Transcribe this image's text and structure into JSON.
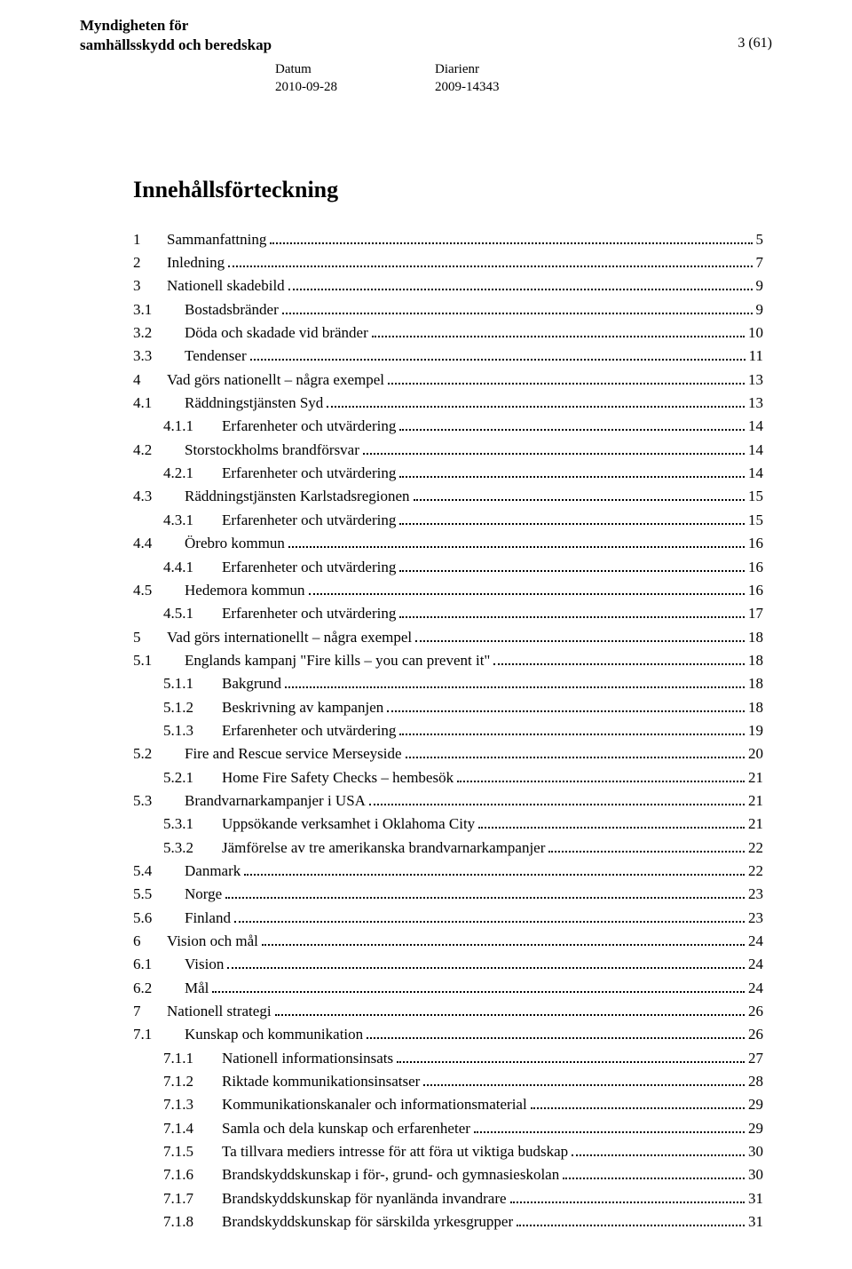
{
  "header": {
    "org_line1": "Myndigheten för",
    "org_line2": "samhällsskydd och beredskap",
    "page_indicator": "3 (61)",
    "meta": {
      "datum_label": "Datum",
      "datum_value": "2010-09-28",
      "diarienr_label": "Diarienr",
      "diarienr_value": "2009-14343"
    }
  },
  "title": "Innehållsförteckning",
  "toc": [
    {
      "level": 0,
      "num": "1",
      "text": "Sammanfattning",
      "page": "5"
    },
    {
      "level": 0,
      "num": "2",
      "text": "Inledning",
      "page": "7"
    },
    {
      "level": 0,
      "num": "3",
      "text": "Nationell skadebild",
      "page": "9"
    },
    {
      "level": 1,
      "num": "3.1",
      "text": "Bostadsbränder",
      "page": "9"
    },
    {
      "level": 1,
      "num": "3.2",
      "text": "Döda och skadade vid bränder",
      "page": "10"
    },
    {
      "level": 1,
      "num": "3.3",
      "text": "Tendenser",
      "page": "11"
    },
    {
      "level": 0,
      "num": "4",
      "text": "Vad görs nationellt – några exempel",
      "page": "13"
    },
    {
      "level": 1,
      "num": "4.1",
      "text": "Räddningstjänsten Syd",
      "page": "13"
    },
    {
      "level": 2,
      "num": "4.1.1",
      "text": "Erfarenheter och utvärdering",
      "page": "14"
    },
    {
      "level": 1,
      "num": "4.2",
      "text": "Storstockholms brandförsvar",
      "page": "14"
    },
    {
      "level": 2,
      "num": "4.2.1",
      "text": "Erfarenheter och utvärdering",
      "page": "14"
    },
    {
      "level": 1,
      "num": "4.3",
      "text": "Räddningstjänsten Karlstadsregionen",
      "page": "15"
    },
    {
      "level": 2,
      "num": "4.3.1",
      "text": "Erfarenheter och utvärdering",
      "page": "15"
    },
    {
      "level": 1,
      "num": "4.4",
      "text": "Örebro kommun",
      "page": "16"
    },
    {
      "level": 2,
      "num": "4.4.1",
      "text": "Erfarenheter och utvärdering",
      "page": "16"
    },
    {
      "level": 1,
      "num": "4.5",
      "text": "Hedemora kommun",
      "page": "16"
    },
    {
      "level": 2,
      "num": "4.5.1",
      "text": "Erfarenheter och utvärdering",
      "page": "17"
    },
    {
      "level": 0,
      "num": "5",
      "text": "Vad görs internationellt – några exempel",
      "page": "18"
    },
    {
      "level": 1,
      "num": "5.1",
      "text": "Englands kampanj \"Fire kills – you can prevent it\"",
      "page": "18"
    },
    {
      "level": 2,
      "num": "5.1.1",
      "text": "Bakgrund",
      "page": "18"
    },
    {
      "level": 2,
      "num": "5.1.2",
      "text": "Beskrivning av kampanjen",
      "page": "18"
    },
    {
      "level": 2,
      "num": "5.1.3",
      "text": "Erfarenheter och utvärdering",
      "page": "19"
    },
    {
      "level": 1,
      "num": "5.2",
      "text": "Fire and Rescue service Merseyside",
      "page": "20"
    },
    {
      "level": 2,
      "num": "5.2.1",
      "text": "Home Fire Safety Checks – hembesök",
      "page": "21"
    },
    {
      "level": 1,
      "num": "5.3",
      "text": "Brandvarnarkampanjer i USA",
      "page": "21"
    },
    {
      "level": 2,
      "num": "5.3.1",
      "text": "Uppsökande verksamhet i Oklahoma City",
      "page": "21"
    },
    {
      "level": 2,
      "num": "5.3.2",
      "text": "Jämförelse av tre amerikanska brandvarnarkampanjer",
      "page": "22"
    },
    {
      "level": 1,
      "num": "5.4",
      "text": "Danmark",
      "page": "22"
    },
    {
      "level": 1,
      "num": "5.5",
      "text": "Norge",
      "page": "23"
    },
    {
      "level": 1,
      "num": "5.6",
      "text": "Finland",
      "page": "23"
    },
    {
      "level": 0,
      "num": "6",
      "text": "Vision och mål",
      "page": "24"
    },
    {
      "level": 1,
      "num": "6.1",
      "text": "Vision",
      "page": "24"
    },
    {
      "level": 1,
      "num": "6.2",
      "text": "Mål",
      "page": "24"
    },
    {
      "level": 0,
      "num": "7",
      "text": "Nationell strategi",
      "page": "26"
    },
    {
      "level": 1,
      "num": "7.1",
      "text": "Kunskap och kommunikation",
      "page": "26"
    },
    {
      "level": 2,
      "num": "7.1.1",
      "text": "Nationell informationsinsats",
      "page": "27"
    },
    {
      "level": 2,
      "num": "7.1.2",
      "text": "Riktade kommunikationsinsatser",
      "page": "28"
    },
    {
      "level": 2,
      "num": "7.1.3",
      "text": "Kommunikationskanaler och informationsmaterial",
      "page": "29"
    },
    {
      "level": 2,
      "num": "7.1.4",
      "text": "Samla och dela kunskap och erfarenheter",
      "page": "29"
    },
    {
      "level": 2,
      "num": "7.1.5",
      "text": "Ta tillvara mediers intresse för att föra ut viktiga budskap",
      "page": "30"
    },
    {
      "level": 2,
      "num": "7.1.6",
      "text": "Brandskyddskunskap i för-, grund- och gymnasieskolan",
      "page": "30"
    },
    {
      "level": 2,
      "num": "7.1.7",
      "text": "Brandskyddskunskap för nyanlända invandrare",
      "page": "31"
    },
    {
      "level": 2,
      "num": "7.1.8",
      "text": "Brandskyddskunskap för särskilda yrkesgrupper",
      "page": "31"
    }
  ]
}
